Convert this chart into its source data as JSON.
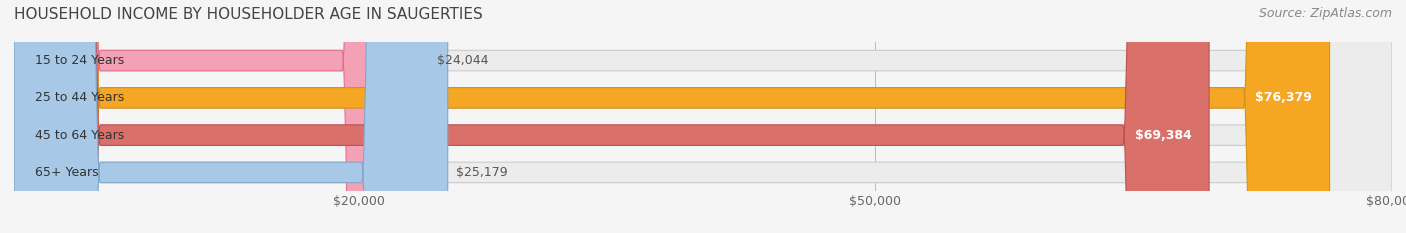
{
  "title": "HOUSEHOLD INCOME BY HOUSEHOLDER AGE IN SAUGERTIES",
  "source": "Source: ZipAtlas.com",
  "categories": [
    "15 to 24 Years",
    "25 to 44 Years",
    "45 to 64 Years",
    "65+ Years"
  ],
  "values": [
    24044,
    76379,
    69384,
    25179
  ],
  "bar_colors": [
    "#f4a0b5",
    "#f5a623",
    "#d9706a",
    "#a8c8e8"
  ],
  "bar_edge_colors": [
    "#e07090",
    "#d4901a",
    "#c05050",
    "#80a8c8"
  ],
  "value_labels": [
    "$24,044",
    "$76,379",
    "$69,384",
    "$25,179"
  ],
  "label_inside": [
    false,
    true,
    true,
    false
  ],
  "xlim": [
    0,
    80000
  ],
  "xticks": [
    20000,
    50000,
    80000
  ],
  "xtick_labels": [
    "$20,000",
    "$50,000",
    "$80,000"
  ],
  "background_color": "#f5f5f5",
  "bar_bg_color": "#ececec",
  "title_fontsize": 11,
  "source_fontsize": 9,
  "label_fontsize": 9,
  "tick_fontsize": 9,
  "bar_height": 0.55
}
